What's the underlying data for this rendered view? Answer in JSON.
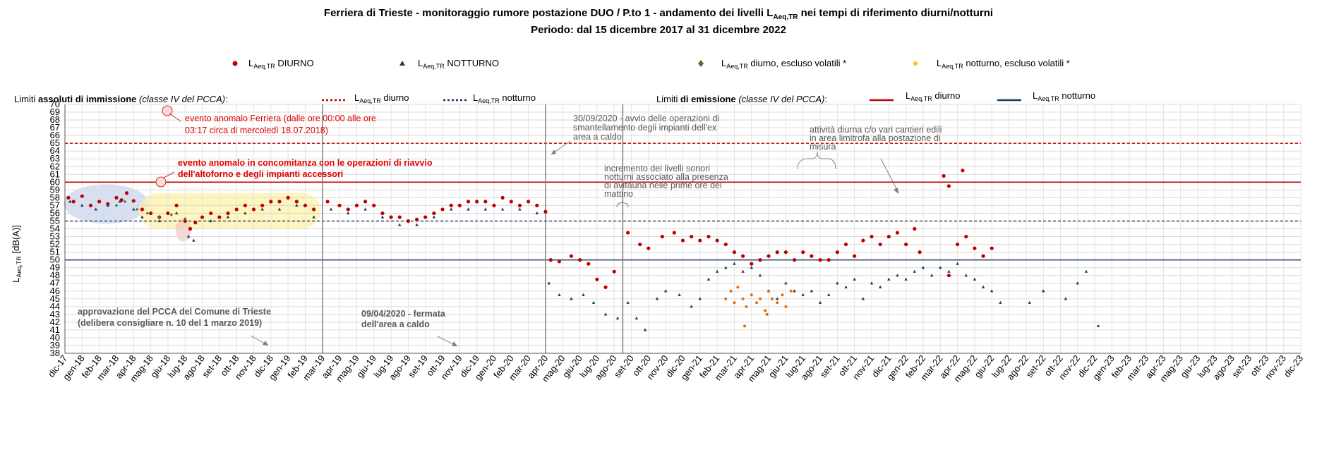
{
  "chart_data": {
    "type": "scatter",
    "title": "Ferriera di Trieste - monitoraggio rumore postazione DUO / P.to 1 - andamento dei livelli L",
    "title_sub": "Aeq,TR",
    "title_rest": " nei tempi di riferimento diurni/notturni",
    "subtitle": "Periodo: dal 15 dicembre 2017 al 31 dicembre 2022",
    "ylabel": "L",
    "ylabel_sub": "Aeq,TR",
    "ylabel_rest": " [dB(A)]",
    "ylim": [
      38,
      70
    ],
    "grid": true,
    "x_tick_labels": [
      "dic-17",
      "gen-18",
      "feb-18",
      "mar-18",
      "apr-18",
      "mag-18",
      "giu-18",
      "lug-18",
      "ago-18",
      "set-18",
      "ott-18",
      "nov-18",
      "dic-18",
      "gen-19",
      "feb-19",
      "mar-19",
      "apr-19",
      "mag-19",
      "giu-19",
      "lug-19",
      "ago-19",
      "set-19",
      "ott-19",
      "nov-19",
      "dic-19",
      "gen-20",
      "feb-20",
      "mar-20",
      "apr-20",
      "mag-20",
      "giu-20",
      "lug-20",
      "ago-20",
      "set-20",
      "ott-20",
      "nov-20",
      "dic-20",
      "gen-21",
      "feb-21",
      "mar-21",
      "apr-21",
      "mag-21",
      "giu-21",
      "lug-21",
      "ago-21",
      "set-21",
      "ott-21",
      "nov-21",
      "dic-21",
      "gen-22",
      "feb-22",
      "mar-22",
      "apr-22",
      "mag-22",
      "giu-22",
      "lug-22",
      "ago-22",
      "set-22",
      "ott-22",
      "nov-22",
      "dic-22",
      "gen-23",
      "feb-23",
      "mar-23",
      "apr-23",
      "mag-23",
      "giu-23",
      "lug-23",
      "ago-23",
      "set-23",
      "ott-23",
      "nov-23",
      "dic-23"
    ],
    "legend": {
      "sub": "Aeq,TR",
      "diurno": " DIURNO",
      "notturno": " NOTTURNO",
      "diurno_volatili": " diurno, escluso volatili *",
      "notturno_volatili": " notturno,  escluso volatili *"
    },
    "limits_row": {
      "immissione_prefix": "Limiti ",
      "immissione_bold": "assoluti di immissione",
      "immissione_italic": " (classe IV del PCCA)",
      "immissione_suffix": ":",
      "emissione_prefix": "Limiti ",
      "emissione_bold": "di emissione",
      "emissione_italic": " (classe IV del PCCA)",
      "emissione_suffix": ":",
      "diurno": " diurno",
      "notturno": " notturno"
    },
    "limit_lines": [
      {
        "name": "immissione diurno",
        "value": 65,
        "style": "dashed",
        "color": "#c00000"
      },
      {
        "name": "immissione notturno",
        "value": 55,
        "style": "dashed",
        "color": "#1f3864"
      },
      {
        "name": "emissione diurno",
        "value": 60,
        "style": "solid",
        "color": "#c00000"
      },
      {
        "name": "emissione notturno",
        "value": 50,
        "style": "solid",
        "color": "#1f3864"
      }
    ],
    "vertical_markers": [
      15.0,
      28.0,
      32.5
    ],
    "series": [
      {
        "name": "LAeq,TR DIURNO",
        "color": "#c00000",
        "marker": "circle",
        "points": [
          [
            0.2,
            58
          ],
          [
            0.5,
            57.5
          ],
          [
            1.0,
            58.2
          ],
          [
            1.5,
            57.0
          ],
          [
            2.0,
            57.5
          ],
          [
            2.5,
            57.2
          ],
          [
            3.0,
            58
          ],
          [
            3.3,
            57.7
          ],
          [
            3.6,
            58.6
          ],
          [
            4.0,
            57.6
          ],
          [
            4.5,
            56.5
          ],
          [
            5.0,
            56
          ],
          [
            5.5,
            55.5
          ],
          [
            6.0,
            56
          ],
          [
            6.5,
            57
          ],
          [
            7.0,
            55
          ],
          [
            7.3,
            54
          ],
          [
            7.6,
            54.8
          ],
          [
            8.0,
            55.5
          ],
          [
            8.5,
            56
          ],
          [
            9.0,
            55.5
          ],
          [
            9.5,
            56
          ],
          [
            10.0,
            56.5
          ],
          [
            10.5,
            57
          ],
          [
            11.0,
            56.5
          ],
          [
            11.5,
            57
          ],
          [
            12.0,
            57.5
          ],
          [
            12.5,
            57.5
          ],
          [
            13.0,
            58
          ],
          [
            13.5,
            57.5
          ],
          [
            14.0,
            57
          ],
          [
            14.5,
            56.5
          ],
          [
            15.3,
            57.5
          ],
          [
            16.0,
            57
          ],
          [
            16.5,
            56.5
          ],
          [
            17.0,
            57
          ],
          [
            17.5,
            57.5
          ],
          [
            18.0,
            57
          ],
          [
            18.5,
            56
          ],
          [
            19.0,
            55.5
          ],
          [
            19.5,
            55.5
          ],
          [
            20.0,
            55
          ],
          [
            20.5,
            55.2
          ],
          [
            21.0,
            55.5
          ],
          [
            21.5,
            56
          ],
          [
            22.0,
            56.5
          ],
          [
            22.5,
            57
          ],
          [
            23.0,
            57
          ],
          [
            23.5,
            57.5
          ],
          [
            24.0,
            57.5
          ],
          [
            24.5,
            57.5
          ],
          [
            25.0,
            57
          ],
          [
            25.5,
            58
          ],
          [
            26.0,
            57.5
          ],
          [
            26.5,
            57
          ],
          [
            27.0,
            57.5
          ],
          [
            27.5,
            57
          ],
          [
            28.0,
            56.2
          ],
          [
            28.3,
            50
          ],
          [
            28.8,
            49.8
          ],
          [
            29.5,
            50.5
          ],
          [
            30.0,
            50
          ],
          [
            30.5,
            49.5
          ],
          [
            31.0,
            47.5
          ],
          [
            31.5,
            46.5
          ],
          [
            32.0,
            48.5
          ],
          [
            32.8,
            53.5
          ],
          [
            33.5,
            52
          ],
          [
            34.0,
            51.5
          ],
          [
            34.8,
            53
          ],
          [
            35.5,
            53.5
          ],
          [
            36.0,
            52.5
          ],
          [
            36.5,
            53
          ],
          [
            37.0,
            52.5
          ],
          [
            37.5,
            53
          ],
          [
            38.0,
            52.5
          ],
          [
            38.5,
            52
          ],
          [
            39.0,
            51
          ],
          [
            39.5,
            50.5
          ],
          [
            40.0,
            49.5
          ],
          [
            40.5,
            50
          ],
          [
            41.0,
            50.5
          ],
          [
            41.5,
            51
          ],
          [
            42.0,
            51
          ],
          [
            42.5,
            50
          ],
          [
            43.0,
            51
          ],
          [
            43.5,
            50.5
          ],
          [
            44.0,
            50
          ],
          [
            44.5,
            50
          ],
          [
            45.0,
            51
          ],
          [
            45.5,
            52
          ],
          [
            46.0,
            50.5
          ],
          [
            46.5,
            52.5
          ],
          [
            47.0,
            53
          ],
          [
            47.5,
            52
          ],
          [
            48.0,
            53
          ],
          [
            48.5,
            53.5
          ],
          [
            49.0,
            52
          ],
          [
            49.5,
            54
          ],
          [
            49.8,
            51
          ],
          [
            51.5,
            48
          ],
          [
            52.0,
            52
          ],
          [
            52.5,
            53
          ],
          [
            53.0,
            51.5
          ],
          [
            53.5,
            50.5
          ],
          [
            54.0,
            51.5
          ],
          [
            51.2,
            60.8
          ],
          [
            51.5,
            59.5
          ],
          [
            52.3,
            61.5
          ]
        ]
      },
      {
        "name": "LAeq,TR NOTTURNO",
        "color": "#1f3864",
        "marker": "triangle",
        "points": [
          [
            0.3,
            57.5
          ],
          [
            1.0,
            57
          ],
          [
            1.8,
            56.5
          ],
          [
            2.5,
            57
          ],
          [
            3.2,
            57.5
          ],
          [
            4.0,
            56.5
          ],
          [
            4.5,
            55.5
          ],
          [
            5.5,
            55
          ],
          [
            6.5,
            56
          ],
          [
            7.2,
            53
          ],
          [
            7.5,
            52.5
          ],
          [
            8.5,
            55
          ],
          [
            9.5,
            55.5
          ],
          [
            10.5,
            56
          ],
          [
            11.5,
            56.5
          ],
          [
            12.5,
            56.5
          ],
          [
            13.5,
            57
          ],
          [
            14.5,
            55.5
          ],
          [
            15.5,
            56.5
          ],
          [
            16.5,
            56
          ],
          [
            17.5,
            56.5
          ],
          [
            18.5,
            55.5
          ],
          [
            19.5,
            54.5
          ],
          [
            20.5,
            54.5
          ],
          [
            21.5,
            55.5
          ],
          [
            22.5,
            56.5
          ],
          [
            23.5,
            56.5
          ],
          [
            24.5,
            56.5
          ],
          [
            25.5,
            56.5
          ],
          [
            26.5,
            56.5
          ],
          [
            27.5,
            56
          ],
          [
            28.2,
            47
          ],
          [
            28.8,
            45.5
          ],
          [
            29.5,
            45
          ],
          [
            30.2,
            45.5
          ],
          [
            30.8,
            44.5
          ],
          [
            31.5,
            43
          ],
          [
            32.2,
            42.5
          ],
          [
            32.8,
            44.5
          ],
          [
            33.3,
            42.5
          ],
          [
            33.8,
            41
          ],
          [
            34.5,
            45
          ],
          [
            35.0,
            46
          ],
          [
            35.8,
            45.5
          ],
          [
            36.5,
            44
          ],
          [
            37.0,
            45
          ],
          [
            37.5,
            47.5
          ],
          [
            38.0,
            48.5
          ],
          [
            38.5,
            49
          ],
          [
            39.0,
            49.5
          ],
          [
            39.5,
            48.5
          ],
          [
            40.0,
            49
          ],
          [
            40.5,
            48
          ],
          [
            41.0,
            46
          ],
          [
            41.5,
            45
          ],
          [
            42.0,
            47
          ],
          [
            42.5,
            46
          ],
          [
            43.0,
            45.5
          ],
          [
            43.5,
            46
          ],
          [
            44.0,
            44.5
          ],
          [
            44.5,
            45.5
          ],
          [
            45.0,
            47
          ],
          [
            45.5,
            46.5
          ],
          [
            46.0,
            47.5
          ],
          [
            46.5,
            45
          ],
          [
            47.0,
            47
          ],
          [
            47.5,
            46.5
          ],
          [
            48.0,
            47.5
          ],
          [
            48.5,
            48
          ],
          [
            49.0,
            47.5
          ],
          [
            49.5,
            48.5
          ],
          [
            50.0,
            49
          ],
          [
            50.5,
            48
          ],
          [
            51.0,
            49
          ],
          [
            51.5,
            48.5
          ],
          [
            52.0,
            49.5
          ],
          [
            52.5,
            48
          ],
          [
            53.0,
            47.5
          ],
          [
            53.5,
            46.5
          ],
          [
            54.0,
            46
          ],
          [
            54.5,
            44.5
          ],
          [
            56.2,
            44.5
          ],
          [
            57.0,
            46
          ],
          [
            58.3,
            45
          ],
          [
            59.0,
            47
          ],
          [
            59.5,
            48.5
          ],
          [
            60.2,
            41.5
          ]
        ]
      },
      {
        "name": "LAeq,TR diurno, escluso volatili *",
        "color": "#5a6e2e",
        "marker": "diamond",
        "points": [
          [
            3.0,
            57.0
          ],
          [
            3.5,
            57.5
          ],
          [
            4.2,
            56.5
          ],
          [
            4.8,
            56
          ],
          [
            5.5,
            55.5
          ],
          [
            6.2,
            55.8
          ],
          [
            7.0,
            55.3
          ]
        ]
      },
      {
        "name": "LAeq,TR notturno,  escluso volatili *",
        "color": "#e46c0a",
        "marker": "circle",
        "points": [
          [
            38.5,
            45
          ],
          [
            38.8,
            46
          ],
          [
            39.0,
            44.5
          ],
          [
            39.2,
            46.5
          ],
          [
            39.5,
            45
          ],
          [
            39.7,
            44
          ],
          [
            40.0,
            45.5
          ],
          [
            40.3,
            44.5
          ],
          [
            40.5,
            45
          ],
          [
            40.8,
            43.5
          ],
          [
            41.0,
            46
          ],
          [
            41.2,
            45
          ],
          [
            41.5,
            44.5
          ],
          [
            41.8,
            45.5
          ],
          [
            42.0,
            44
          ],
          [
            42.3,
            46
          ],
          [
            39.6,
            41.5
          ],
          [
            40.9,
            43
          ]
        ]
      }
    ],
    "annotations": {
      "ferriera": [
        "evento anomalo Ferriera (dalle ore 00:00 alle ore",
        "03:17 circa di mercoledì 18.07.2018)"
      ],
      "riavvio": [
        "evento anomalo in concomitanza con le operazioni di riavvio",
        "dell'altoforno e degli impianti accessori"
      ],
      "pcca": [
        "approvazione del PCCA del Comune di Trieste",
        "(delibera consigliare n. 10 del 1 marzo 2019)"
      ],
      "fermata": [
        "09/04/2020  - fermata",
        "dell'area a caldo"
      ],
      "smantellamento": [
        "30/09/2020  - avvio delle operazioni di",
        "smantellamento degli impianti dell'ex",
        "area a caldo"
      ],
      "avifauna": [
        "incremento dei livelli sonori",
        "notturni associato alla presenza",
        "di avifauna nelle prime ore del",
        "mattino"
      ],
      "cantieri": [
        "attività diurna c/o vari cantieri edili",
        "in area limitrofa alla postazione di",
        "misura"
      ]
    }
  }
}
